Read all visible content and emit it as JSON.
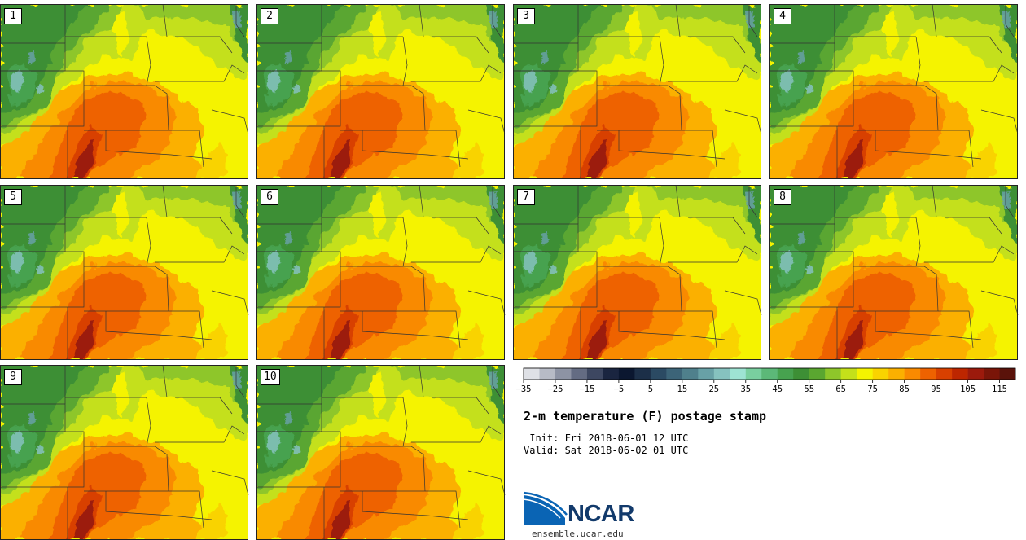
{
  "title": "2-m temperature (F) postage stamp",
  "init_label": " Init: Fri 2018-06-01 12 UTC",
  "valid_label": "Valid: Sat 2018-06-02 01 UTC",
  "panels": [
    "1",
    "2",
    "3",
    "4",
    "5",
    "6",
    "7",
    "8",
    "9",
    "10"
  ],
  "colorbar": {
    "units": "F",
    "ticks": [
      "−35",
      "−25",
      "−15",
      "−5",
      "5",
      "15",
      "25",
      "35",
      "45",
      "55",
      "65",
      "75",
      "85",
      "95",
      "105",
      "115"
    ],
    "colors": [
      "#dfe1e6",
      "#b7bbc6",
      "#8d93a4",
      "#646c83",
      "#3d4761",
      "#1a2540",
      "#0b1730",
      "#1c2f48",
      "#2b4a63",
      "#3c6478",
      "#4f808c",
      "#68a1a6",
      "#86c2bf",
      "#9ee3d3",
      "#79cf9f",
      "#5cb878",
      "#47a24f",
      "#3d8f35",
      "#5aa630",
      "#8ec62a",
      "#c4e01a",
      "#f5f300",
      "#f9d300",
      "#fbb000",
      "#f98a00",
      "#ee6200",
      "#d84000",
      "#bd2600",
      "#9c1a0c",
      "#7a1508",
      "#5a120a"
    ]
  },
  "logo": {
    "text": "NCAR",
    "url": "ensemble.ucar.edu"
  }
}
